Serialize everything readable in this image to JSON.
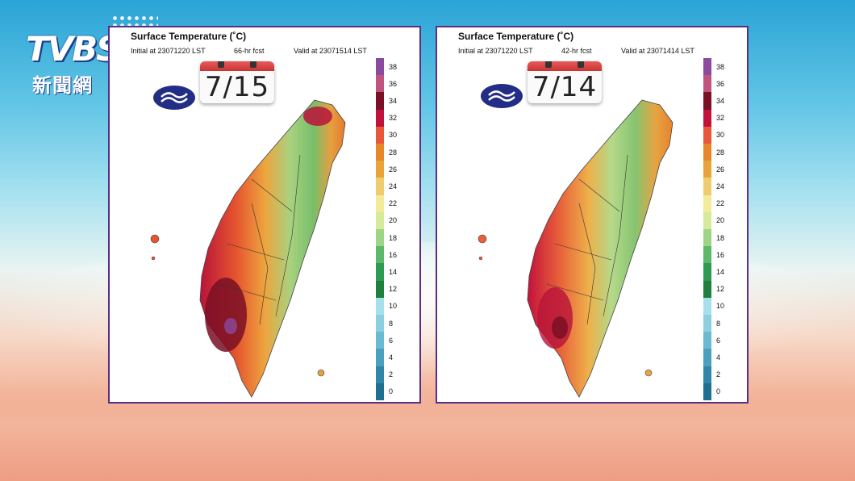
{
  "logo": {
    "text": "TVBS",
    "subtitle": "新聞網"
  },
  "colors": {
    "panel_border": "#5b2d86",
    "calendar_red": "#d94040",
    "cwb_blue": "#232d86"
  },
  "colorbar": {
    "labels": [
      "38",
      "36",
      "34",
      "32",
      "30",
      "28",
      "26",
      "24",
      "22",
      "20",
      "18",
      "16",
      "14",
      "12",
      "10",
      "8",
      "6",
      "4",
      "2",
      "0"
    ],
    "colors": [
      "#8a4a9e",
      "#c0547e",
      "#7a0f25",
      "#c2123b",
      "#e8573a",
      "#e8862b",
      "#e8a33a",
      "#f0cc70",
      "#f4eb9a",
      "#d6ea9a",
      "#9ed486",
      "#5db86a",
      "#2f9a52",
      "#1f7f3c",
      "#a7e0ea",
      "#8ccfe0",
      "#6bbad2",
      "#4ba0be",
      "#2f86a8",
      "#1f6f90"
    ]
  },
  "panels": [
    {
      "title": "Surface Temperature (˚C)",
      "initial": "Initial at 23071220 LST",
      "fcst": "66-hr fcst",
      "valid": "Valid at 23071514 LST",
      "date": "7/15"
    },
    {
      "title": "Surface Temperature (˚C)",
      "initial": "Initial at 23071220 LST",
      "fcst": "42-hr fcst",
      "valid": "Valid at 23071414 LST",
      "date": "7/14"
    }
  ]
}
